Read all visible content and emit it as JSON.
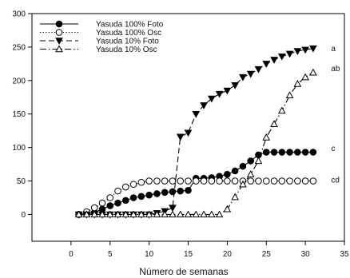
{
  "chart_data": {
    "type": "line",
    "xlabel": "Número de semanas",
    "ylabel": "",
    "xlim": [
      -5,
      35
    ],
    "ylim": [
      -40,
      300
    ],
    "xticks": [
      0,
      5,
      10,
      15,
      20,
      25,
      30,
      35
    ],
    "yticks": [
      0,
      50,
      100,
      150,
      200,
      250,
      300
    ],
    "grid": false,
    "legend_position": "top-left",
    "series": [
      {
        "name": "Yasuda 100% Foto",
        "marker": "filled-circle",
        "line": "solid",
        "x": [
          1,
          2,
          3,
          4,
          5,
          6,
          7,
          8,
          9,
          10,
          11,
          12,
          13,
          14,
          15,
          16,
          17,
          18,
          19,
          20,
          21,
          22,
          23,
          24,
          25,
          26,
          27,
          28,
          29,
          30,
          31
        ],
        "y": [
          0,
          1,
          3,
          8,
          13,
          17,
          21,
          25,
          27,
          29,
          31,
          33,
          34,
          35,
          36,
          54,
          54,
          55,
          57,
          60,
          65,
          72,
          80,
          89,
          93,
          93,
          93,
          93,
          93,
          93,
          93
        ]
      },
      {
        "name": "Yasuda 100% Osc",
        "marker": "open-circle",
        "line": "dotted",
        "x": [
          1,
          2,
          3,
          4,
          5,
          6,
          7,
          8,
          9,
          10,
          11,
          12,
          13,
          14,
          15,
          16,
          17,
          18,
          19,
          20,
          21,
          22,
          23,
          24,
          25,
          26,
          27,
          28,
          29,
          30,
          31
        ],
        "y": [
          0,
          4,
          10,
          17,
          25,
          35,
          41,
          45,
          48,
          50,
          50,
          50,
          50,
          50,
          50,
          50,
          50,
          50,
          50,
          50,
          50,
          50,
          50,
          50,
          50,
          50,
          50,
          50,
          50,
          50,
          50
        ]
      },
      {
        "name": "Yasuda 10% Foto",
        "marker": "filled-triangle-down",
        "line": "dashed",
        "x": [
          1,
          2,
          3,
          4,
          5,
          6,
          7,
          8,
          9,
          10,
          11,
          12,
          13,
          14,
          15,
          16,
          17,
          18,
          19,
          20,
          21,
          22,
          23,
          24,
          25,
          26,
          27,
          28,
          29,
          30,
          31
        ],
        "y": [
          0,
          0,
          0,
          0,
          0,
          0,
          0,
          0,
          0,
          0,
          2,
          5,
          10,
          116,
          122,
          150,
          163,
          173,
          180,
          185,
          193,
          205,
          210,
          217,
          225,
          231,
          236,
          240,
          244,
          246,
          248
        ]
      },
      {
        "name": "Yasuda 10% Osc",
        "marker": "open-triangle-up",
        "line": "dash-dot",
        "x": [
          1,
          2,
          3,
          4,
          5,
          6,
          7,
          8,
          9,
          10,
          11,
          12,
          13,
          14,
          15,
          16,
          17,
          18,
          19,
          20,
          21,
          22,
          23,
          24,
          25,
          26,
          27,
          28,
          29,
          30,
          31
        ],
        "y": [
          0,
          0,
          0,
          0,
          0,
          0,
          0,
          0,
          0,
          0,
          0,
          0,
          0,
          0,
          0,
          0,
          0,
          0,
          0,
          8,
          26,
          45,
          60,
          80,
          115,
          135,
          155,
          178,
          195,
          205,
          212
        ]
      }
    ],
    "annotations": [
      {
        "text": "a",
        "x": 33.3,
        "y": 248
      },
      {
        "text": "ab",
        "x": 33.3,
        "y": 218
      },
      {
        "text": "c",
        "x": 33.3,
        "y": 99
      },
      {
        "text": "cd",
        "x": 33.3,
        "y": 52
      }
    ]
  }
}
